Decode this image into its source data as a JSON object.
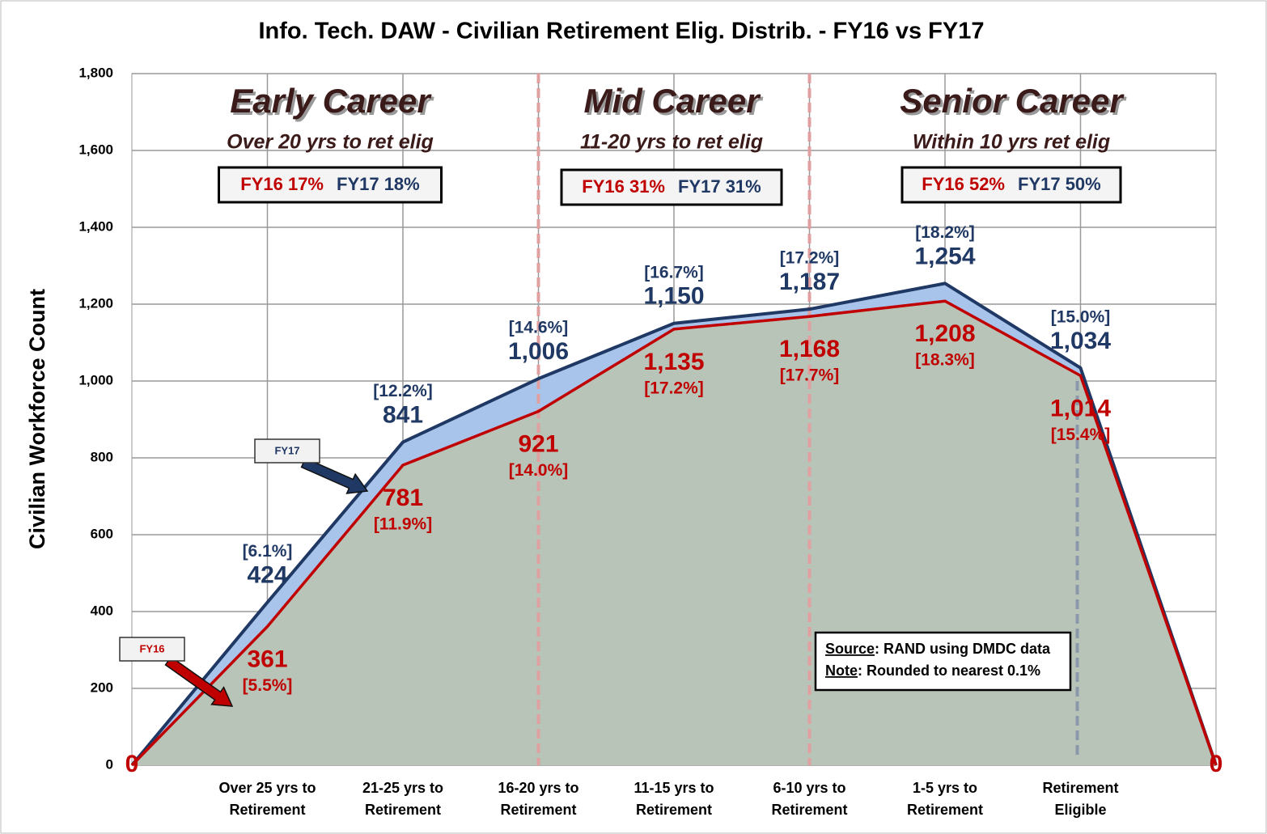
{
  "chart_data": {
    "type": "area",
    "title": "Info. Tech. DAW - Civilian Retirement Elig. Distrib. - FY16 vs FY17",
    "y_label": "Civilian Workforce Count",
    "categories": [
      null,
      "Over 25 yrs to Retirement",
      "21-25 yrs to Retirement",
      "16-20 yrs to Retirement",
      "11-15 yrs to Retirement",
      "6-10 yrs to Retirement",
      "1-5 yrs to Retirement",
      "Retirement Eligible",
      null
    ],
    "series": [
      {
        "name": "FY17",
        "color": "#1f3864",
        "fill": "#a9c4eb",
        "values": [
          0,
          424,
          841,
          1006,
          1150,
          1187,
          1254,
          1034,
          0
        ],
        "value_labels": [
          null,
          "424",
          "841",
          "1,006",
          "1,150",
          "1,187",
          "1,254",
          "1,034",
          null
        ],
        "shares": [
          null,
          6.1,
          12.2,
          14.6,
          16.7,
          17.2,
          18.2,
          15.0,
          null
        ],
        "share_labels": [
          null,
          "[6.1%]",
          "[12.2%]",
          "[14.6%]",
          "[16.7%]",
          "[17.2%]",
          "[18.2%]",
          "[15.0%]",
          null
        ]
      },
      {
        "name": "FY16",
        "color": "#c00000",
        "fill": "#b9c4b8",
        "values": [
          0,
          361,
          781,
          921,
          1135,
          1168,
          1208,
          1014,
          0
        ],
        "value_labels": [
          "0",
          "361",
          "781",
          "921",
          "1,135",
          "1,168",
          "1,208",
          "1,014",
          "0"
        ],
        "shares": [
          null,
          5.5,
          11.9,
          14.0,
          17.2,
          17.7,
          18.3,
          15.4,
          null
        ],
        "share_labels": [
          null,
          "[5.5%]",
          "[11.9%]",
          "[14.0%]",
          "[17.2%]",
          "[17.7%]",
          "[18.3%]",
          "[15.4%]",
          null
        ]
      }
    ],
    "ylim": [
      0,
      1800
    ],
    "yticks": [
      0,
      200,
      400,
      600,
      800,
      {
        "value": 1000,
        "label": "1,000"
      },
      {
        "value": 1200,
        "label": "1,200"
      },
      {
        "value": 1400,
        "label": "1,400"
      },
      {
        "value": 1600,
        "label": "1,600"
      },
      {
        "value": 1800,
        "label": "1,800"
      }
    ],
    "grid": true,
    "sections": [
      {
        "title": "Early Career",
        "subtitle": "Over 20 yrs to ret elig",
        "fy16": "FY16 17%",
        "fy17": "FY17 18%"
      },
      {
        "title": "Mid Career",
        "subtitle": "11-20 yrs to ret elig",
        "fy16": "FY16 31%",
        "fy17": "FY17 31%"
      },
      {
        "title": "Senior Career",
        "subtitle": "Within 10 yrs ret elig",
        "fy16": "FY16 52%",
        "fy17": "FY17 50%"
      }
    ],
    "source": {
      "label": "Source",
      "text": ":  RAND using DMDC data"
    },
    "note": {
      "label": "Note",
      "text": ":  Rounded to nearest 0.1%"
    }
  }
}
